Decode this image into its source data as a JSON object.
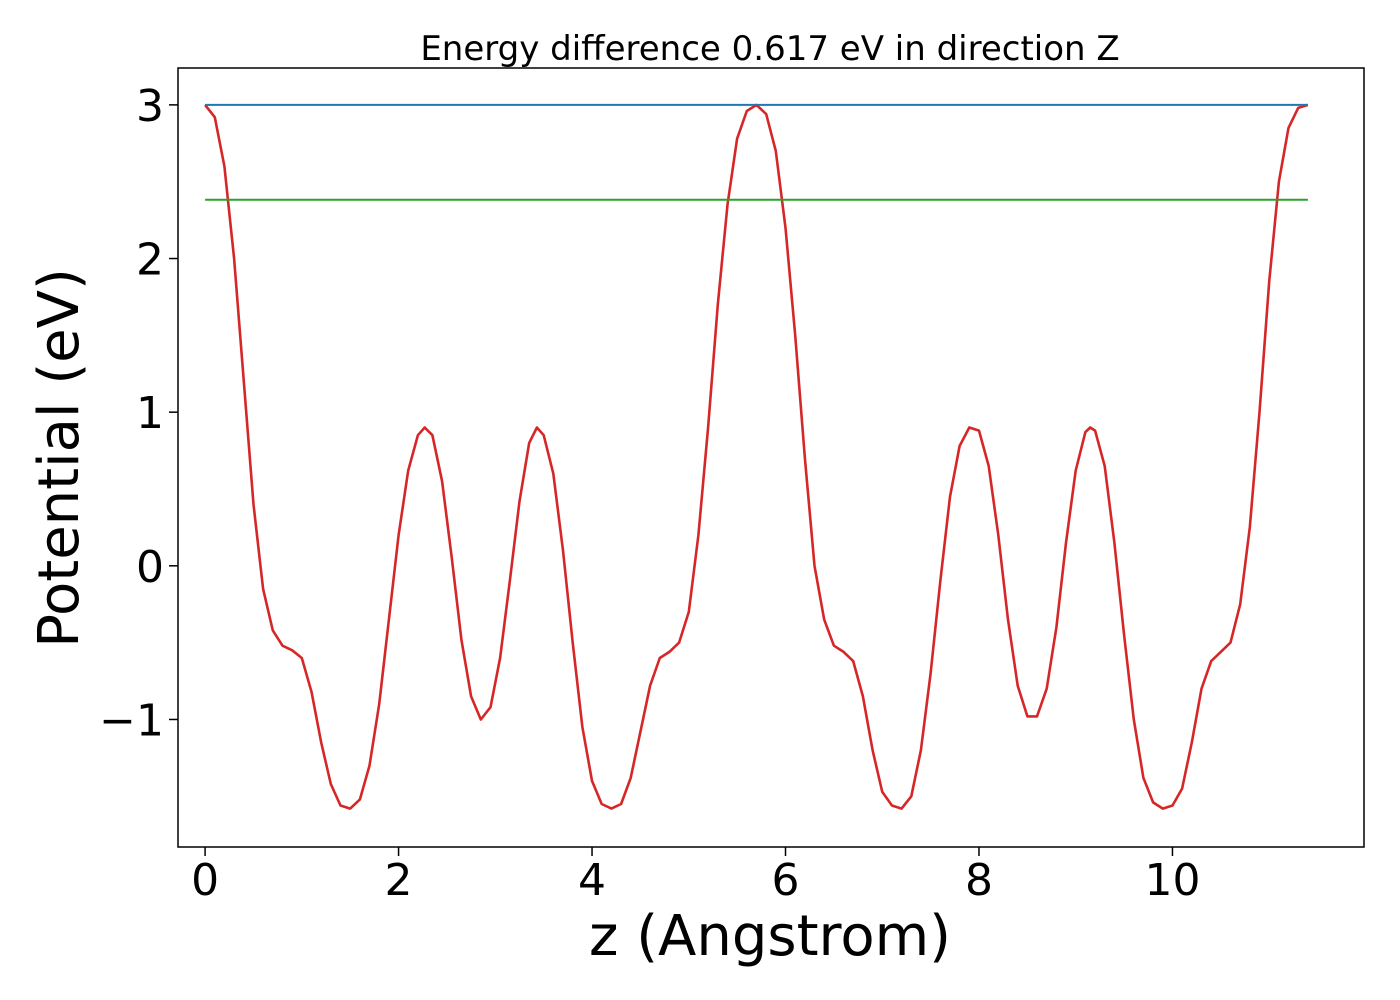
{
  "chart_data": {
    "type": "line",
    "title": "Energy difference 0.617 eV in direction Z",
    "xlabel": "z (Angstrom)",
    "ylabel": "Potential (eV)",
    "xlim": [
      -0.28,
      11.98
    ],
    "ylim": [
      -1.83,
      3.24
    ],
    "xticks": [
      0,
      2,
      4,
      6,
      8,
      10
    ],
    "xtick_labels": [
      "0",
      "2",
      "4",
      "6",
      "8",
      "10"
    ],
    "yticks": [
      -1,
      0,
      1,
      2,
      3
    ],
    "ytick_labels": [
      "−1",
      "0",
      "1",
      "2",
      "3"
    ],
    "grid": false,
    "legend": "none",
    "series": [
      {
        "color": "#d62728",
        "points": [
          [
            0.0,
            3.0
          ],
          [
            0.1,
            2.92
          ],
          [
            0.2,
            2.6
          ],
          [
            0.3,
            2.0
          ],
          [
            0.4,
            1.2
          ],
          [
            0.5,
            0.4
          ],
          [
            0.6,
            -0.15
          ],
          [
            0.7,
            -0.42
          ],
          [
            0.8,
            -0.52
          ],
          [
            0.9,
            -0.55
          ],
          [
            1.0,
            -0.6
          ],
          [
            1.1,
            -0.82
          ],
          [
            1.2,
            -1.15
          ],
          [
            1.3,
            -1.42
          ],
          [
            1.4,
            -1.56
          ],
          [
            1.5,
            -1.58
          ],
          [
            1.6,
            -1.52
          ],
          [
            1.7,
            -1.3
          ],
          [
            1.8,
            -0.9
          ],
          [
            1.9,
            -0.35
          ],
          [
            2.0,
            0.2
          ],
          [
            2.1,
            0.62
          ],
          [
            2.2,
            0.85
          ],
          [
            2.27,
            0.9
          ],
          [
            2.35,
            0.85
          ],
          [
            2.45,
            0.55
          ],
          [
            2.55,
            0.05
          ],
          [
            2.65,
            -0.48
          ],
          [
            2.75,
            -0.85
          ],
          [
            2.85,
            -1.0
          ],
          [
            2.95,
            -0.92
          ],
          [
            3.05,
            -0.6
          ],
          [
            3.15,
            -0.1
          ],
          [
            3.25,
            0.42
          ],
          [
            3.35,
            0.8
          ],
          [
            3.43,
            0.9
          ],
          [
            3.5,
            0.85
          ],
          [
            3.6,
            0.6
          ],
          [
            3.7,
            0.1
          ],
          [
            3.8,
            -0.5
          ],
          [
            3.9,
            -1.05
          ],
          [
            4.0,
            -1.4
          ],
          [
            4.1,
            -1.55
          ],
          [
            4.2,
            -1.58
          ],
          [
            4.3,
            -1.55
          ],
          [
            4.4,
            -1.38
          ],
          [
            4.5,
            -1.08
          ],
          [
            4.6,
            -0.78
          ],
          [
            4.7,
            -0.6
          ],
          [
            4.8,
            -0.56
          ],
          [
            4.9,
            -0.5
          ],
          [
            5.0,
            -0.3
          ],
          [
            5.1,
            0.2
          ],
          [
            5.2,
            0.9
          ],
          [
            5.3,
            1.7
          ],
          [
            5.4,
            2.35
          ],
          [
            5.5,
            2.78
          ],
          [
            5.6,
            2.96
          ],
          [
            5.7,
            3.0
          ],
          [
            5.8,
            2.94
          ],
          [
            5.9,
            2.7
          ],
          [
            6.0,
            2.2
          ],
          [
            6.1,
            1.5
          ],
          [
            6.2,
            0.7
          ],
          [
            6.3,
            0.0
          ],
          [
            6.4,
            -0.35
          ],
          [
            6.5,
            -0.52
          ],
          [
            6.6,
            -0.56
          ],
          [
            6.7,
            -0.62
          ],
          [
            6.8,
            -0.85
          ],
          [
            6.9,
            -1.2
          ],
          [
            7.0,
            -1.47
          ],
          [
            7.1,
            -1.56
          ],
          [
            7.2,
            -1.58
          ],
          [
            7.3,
            -1.5
          ],
          [
            7.4,
            -1.2
          ],
          [
            7.5,
            -0.7
          ],
          [
            7.6,
            -0.1
          ],
          [
            7.7,
            0.45
          ],
          [
            7.8,
            0.78
          ],
          [
            7.9,
            0.9
          ],
          [
            8.0,
            0.88
          ],
          [
            8.1,
            0.65
          ],
          [
            8.2,
            0.2
          ],
          [
            8.3,
            -0.35
          ],
          [
            8.4,
            -0.78
          ],
          [
            8.5,
            -0.98
          ],
          [
            8.6,
            -0.98
          ],
          [
            8.7,
            -0.8
          ],
          [
            8.8,
            -0.4
          ],
          [
            8.9,
            0.15
          ],
          [
            9.0,
            0.62
          ],
          [
            9.1,
            0.87
          ],
          [
            9.15,
            0.9
          ],
          [
            9.2,
            0.88
          ],
          [
            9.3,
            0.65
          ],
          [
            9.4,
            0.15
          ],
          [
            9.5,
            -0.45
          ],
          [
            9.6,
            -1.0
          ],
          [
            9.7,
            -1.38
          ],
          [
            9.8,
            -1.54
          ],
          [
            9.9,
            -1.58
          ],
          [
            10.0,
            -1.56
          ],
          [
            10.1,
            -1.45
          ],
          [
            10.2,
            -1.15
          ],
          [
            10.3,
            -0.8
          ],
          [
            10.4,
            -0.62
          ],
          [
            10.5,
            -0.56
          ],
          [
            10.6,
            -0.5
          ],
          [
            10.7,
            -0.25
          ],
          [
            10.8,
            0.25
          ],
          [
            10.9,
            1.0
          ],
          [
            11.0,
            1.85
          ],
          [
            11.1,
            2.5
          ],
          [
            11.2,
            2.85
          ],
          [
            11.3,
            2.98
          ],
          [
            11.4,
            3.0
          ]
        ]
      },
      {
        "color": "#1f77b4",
        "points": [
          [
            0.0,
            3.0
          ],
          [
            11.4,
            3.0
          ]
        ]
      },
      {
        "color": "#2ca02c",
        "points": [
          [
            0.0,
            2.383
          ],
          [
            11.4,
            2.383
          ]
        ]
      }
    ]
  }
}
